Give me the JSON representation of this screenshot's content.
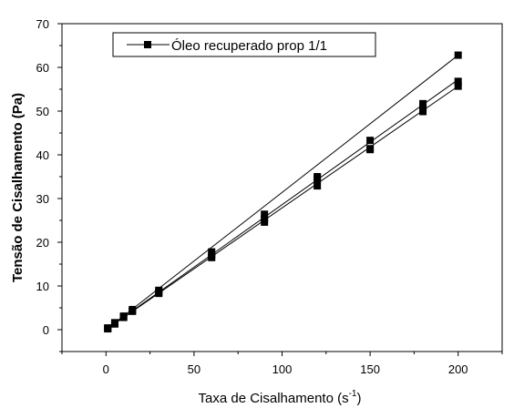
{
  "chart_data": {
    "type": "scatter",
    "title": "",
    "xlabel": "Taxa de Cisalhamento (s",
    "xlabel_superscript": "-1",
    "xlabel_suffix": ")",
    "ylabel": "Tensão de Cisalhamento (Pa)",
    "xlim": [
      -25,
      225
    ],
    "ylim": [
      -5,
      70
    ],
    "xticks": [
      0,
      50,
      100,
      150,
      200
    ],
    "yticks": [
      0,
      10,
      20,
      30,
      40,
      50,
      60,
      70
    ],
    "grid": false,
    "legend_position": "top-left",
    "legend": [
      {
        "label": "Óleo recuperado prop 1/1",
        "marker": "square",
        "line": true
      }
    ],
    "series": [
      {
        "x": [
          1,
          5,
          10,
          15,
          30,
          60,
          90,
          120,
          150,
          180,
          200
        ],
        "y": [
          0.4,
          1.6,
          3.1,
          4.6,
          9.0,
          17.8,
          26.4,
          35.0,
          43.3,
          51.7,
          62.8
        ],
        "line": [
          [
            0,
            0
          ],
          [
            200,
            62.8
          ]
        ]
      },
      {
        "x": [
          1,
          5,
          10,
          15,
          30,
          60,
          90,
          120,
          150,
          180,
          200
        ],
        "y": [
          0.3,
          1.4,
          2.9,
          4.3,
          8.6,
          17.0,
          25.3,
          34.5,
          41.4,
          50.7,
          56.8
        ],
        "line": [
          [
            0,
            0
          ],
          [
            200,
            57.2
          ]
        ]
      },
      {
        "x": [
          1,
          5,
          10,
          15,
          30,
          60,
          90,
          120,
          150,
          180,
          200
        ],
        "y": [
          0.2,
          1.3,
          2.8,
          4.2,
          8.3,
          16.5,
          24.6,
          32.9,
          41.2,
          49.9,
          55.7
        ],
        "line": [
          [
            0,
            0
          ],
          [
            200,
            55.7
          ]
        ]
      }
    ],
    "style": {
      "axis_color": "#000000",
      "series_color": "#000000",
      "background": "#ffffff"
    }
  }
}
